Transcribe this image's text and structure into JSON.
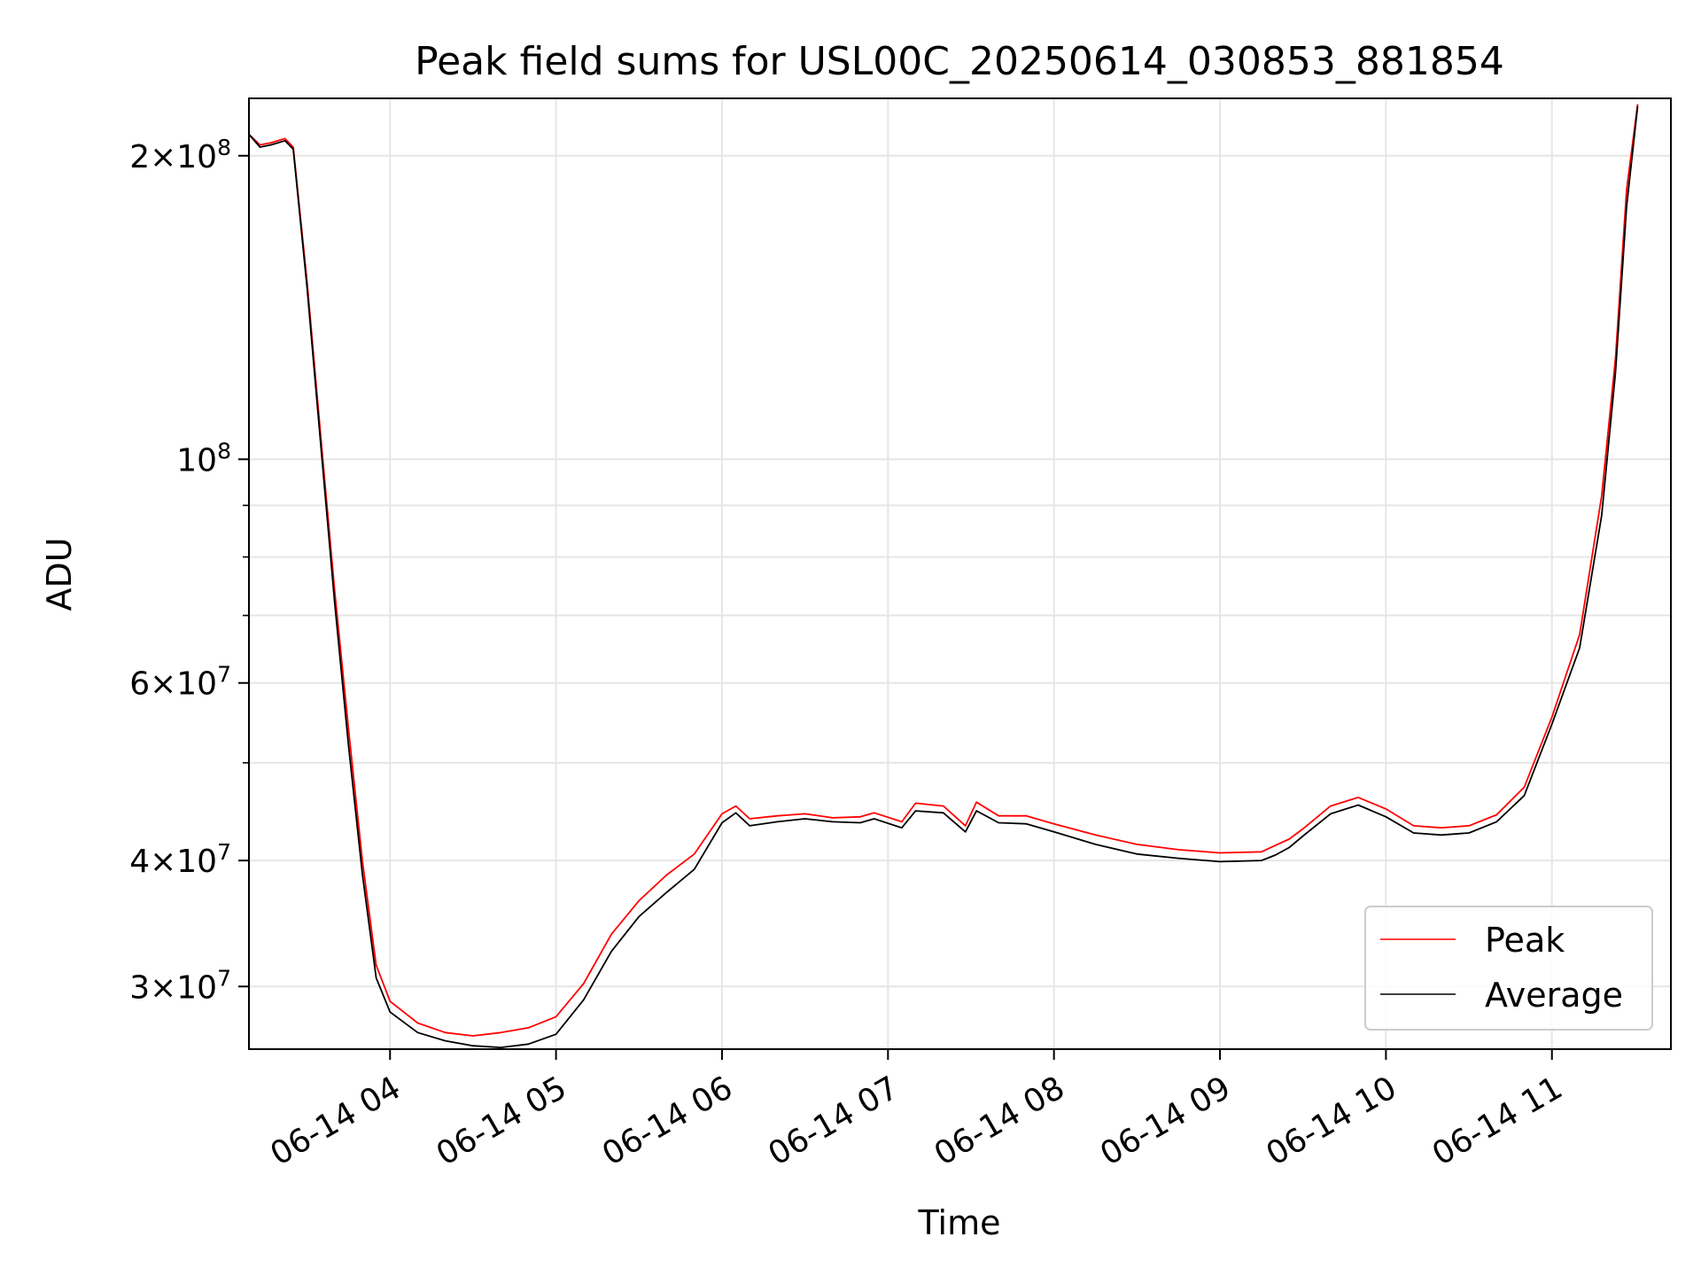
{
  "chart_data": {
    "type": "line",
    "title": "Peak field sums for USL00C_20250614_030853_881854",
    "xlabel": "Time",
    "ylabel": "ADU",
    "yscale": "log",
    "xlim": [
      "2025-06-14 03:09",
      "2025-06-14 11:43"
    ],
    "ylim": [
      26000000,
      228000000
    ],
    "x_ticks": [
      {
        "value": "2025-06-14 04:00",
        "label": "06-14 04"
      },
      {
        "value": "2025-06-14 05:00",
        "label": "06-14 05"
      },
      {
        "value": "2025-06-14 06:00",
        "label": "06-14 06"
      },
      {
        "value": "2025-06-14 07:00",
        "label": "06-14 07"
      },
      {
        "value": "2025-06-14 08:00",
        "label": "06-14 08"
      },
      {
        "value": "2025-06-14 09:00",
        "label": "06-14 09"
      },
      {
        "value": "2025-06-14 10:00",
        "label": "06-14 10"
      },
      {
        "value": "2025-06-14 11:00",
        "label": "06-14 11"
      }
    ],
    "y_ticks": [
      {
        "value": 30000000,
        "mantissa": "3",
        "exp": "7"
      },
      {
        "value": 40000000,
        "mantissa": "4",
        "exp": "7"
      },
      {
        "value": 60000000,
        "mantissa": "6",
        "exp": "7"
      },
      {
        "value": 100000000,
        "mantissa": "",
        "exp": "8"
      },
      {
        "value": 200000000,
        "mantissa": "2",
        "exp": "8"
      }
    ],
    "y_minor_ticks": [
      50000000,
      70000000,
      80000000,
      90000000
    ],
    "grid": true,
    "legend_position": "lower-right",
    "series": [
      {
        "name": "Peak",
        "color": "#ff0000",
        "points": [
          [
            "2025-06-14 03:09",
            210000000
          ],
          [
            "2025-06-14 03:13",
            205000000
          ],
          [
            "2025-06-14 03:17",
            206000000
          ],
          [
            "2025-06-14 03:22",
            208000000
          ],
          [
            "2025-06-14 03:25",
            204000000
          ],
          [
            "2025-06-14 03:30",
            150000000
          ],
          [
            "2025-06-14 03:35",
            105000000
          ],
          [
            "2025-06-14 03:40",
            74000000
          ],
          [
            "2025-06-14 03:45",
            54000000
          ],
          [
            "2025-06-14 03:50",
            40000000
          ],
          [
            "2025-06-14 03:55",
            31500000
          ],
          [
            "2025-06-14 04:00",
            29000000
          ],
          [
            "2025-06-14 04:10",
            27600000
          ],
          [
            "2025-06-14 04:20",
            27000000
          ],
          [
            "2025-06-14 04:30",
            26800000
          ],
          [
            "2025-06-14 04:40",
            27000000
          ],
          [
            "2025-06-14 04:50",
            27300000
          ],
          [
            "2025-06-14 05:00",
            28000000
          ],
          [
            "2025-06-14 05:10",
            30200000
          ],
          [
            "2025-06-14 05:20",
            33800000
          ],
          [
            "2025-06-14 05:30",
            36500000
          ],
          [
            "2025-06-14 05:40",
            38700000
          ],
          [
            "2025-06-14 05:50",
            40600000
          ],
          [
            "2025-06-14 06:00",
            44500000
          ],
          [
            "2025-06-14 06:05",
            45300000
          ],
          [
            "2025-06-14 06:10",
            44000000
          ],
          [
            "2025-06-14 06:20",
            44300000
          ],
          [
            "2025-06-14 06:30",
            44500000
          ],
          [
            "2025-06-14 06:40",
            44100000
          ],
          [
            "2025-06-14 06:50",
            44200000
          ],
          [
            "2025-06-14 06:55",
            44600000
          ],
          [
            "2025-06-14 07:05",
            43700000
          ],
          [
            "2025-06-14 07:10",
            45600000
          ],
          [
            "2025-06-14 07:20",
            45300000
          ],
          [
            "2025-06-14 07:28",
            43300000
          ],
          [
            "2025-06-14 07:32",
            45700000
          ],
          [
            "2025-06-14 07:40",
            44300000
          ],
          [
            "2025-06-14 07:50",
            44300000
          ],
          [
            "2025-06-14 08:00",
            43500000
          ],
          [
            "2025-06-14 08:15",
            42400000
          ],
          [
            "2025-06-14 08:30",
            41500000
          ],
          [
            "2025-06-14 08:45",
            41000000
          ],
          [
            "2025-06-14 09:00",
            40700000
          ],
          [
            "2025-06-14 09:15",
            40800000
          ],
          [
            "2025-06-14 09:20",
            41400000
          ],
          [
            "2025-06-14 09:25",
            42000000
          ],
          [
            "2025-06-14 09:30",
            43000000
          ],
          [
            "2025-06-14 09:40",
            45300000
          ],
          [
            "2025-06-14 09:50",
            46200000
          ],
          [
            "2025-06-14 10:00",
            45000000
          ],
          [
            "2025-06-14 10:10",
            43300000
          ],
          [
            "2025-06-14 10:20",
            43100000
          ],
          [
            "2025-06-14 10:30",
            43300000
          ],
          [
            "2025-06-14 10:40",
            44400000
          ],
          [
            "2025-06-14 10:50",
            47300000
          ],
          [
            "2025-06-14 11:00",
            55500000
          ],
          [
            "2025-06-14 11:10",
            67000000
          ],
          [
            "2025-06-14 11:18",
            92000000
          ],
          [
            "2025-06-14 11:23",
            126000000
          ],
          [
            "2025-06-14 11:27",
            185000000
          ],
          [
            "2025-06-14 11:31",
            225000000
          ]
        ]
      },
      {
        "name": "Average",
        "color": "#000000",
        "points": [
          [
            "2025-06-14 03:09",
            210000000
          ],
          [
            "2025-06-14 03:13",
            204000000
          ],
          [
            "2025-06-14 03:17",
            205000000
          ],
          [
            "2025-06-14 03:22",
            207000000
          ],
          [
            "2025-06-14 03:25",
            203000000
          ],
          [
            "2025-06-14 03:30",
            148000000
          ],
          [
            "2025-06-14 03:35",
            103000000
          ],
          [
            "2025-06-14 03:40",
            72000000
          ],
          [
            "2025-06-14 03:45",
            52000000
          ],
          [
            "2025-06-14 03:50",
            38800000
          ],
          [
            "2025-06-14 03:55",
            30600000
          ],
          [
            "2025-06-14 04:00",
            28300000
          ],
          [
            "2025-06-14 04:10",
            27000000
          ],
          [
            "2025-06-14 04:20",
            26500000
          ],
          [
            "2025-06-14 04:30",
            26200000
          ],
          [
            "2025-06-14 04:40",
            26100000
          ],
          [
            "2025-06-14 04:50",
            26300000
          ],
          [
            "2025-06-14 05:00",
            26900000
          ],
          [
            "2025-06-14 05:10",
            29100000
          ],
          [
            "2025-06-14 05:20",
            32500000
          ],
          [
            "2025-06-14 05:30",
            35200000
          ],
          [
            "2025-06-14 05:40",
            37200000
          ],
          [
            "2025-06-14 05:50",
            39200000
          ],
          [
            "2025-06-14 06:00",
            43600000
          ],
          [
            "2025-06-14 06:05",
            44600000
          ],
          [
            "2025-06-14 06:10",
            43300000
          ],
          [
            "2025-06-14 06:20",
            43700000
          ],
          [
            "2025-06-14 06:30",
            44000000
          ],
          [
            "2025-06-14 06:40",
            43700000
          ],
          [
            "2025-06-14 06:50",
            43600000
          ],
          [
            "2025-06-14 06:55",
            44000000
          ],
          [
            "2025-06-14 07:05",
            43100000
          ],
          [
            "2025-06-14 07:10",
            44800000
          ],
          [
            "2025-06-14 07:20",
            44600000
          ],
          [
            "2025-06-14 07:28",
            42700000
          ],
          [
            "2025-06-14 07:32",
            44800000
          ],
          [
            "2025-06-14 07:40",
            43600000
          ],
          [
            "2025-06-14 07:50",
            43500000
          ],
          [
            "2025-06-14 08:00",
            42700000
          ],
          [
            "2025-06-14 08:15",
            41500000
          ],
          [
            "2025-06-14 08:30",
            40600000
          ],
          [
            "2025-06-14 08:45",
            40200000
          ],
          [
            "2025-06-14 09:00",
            39900000
          ],
          [
            "2025-06-14 09:15",
            40000000
          ],
          [
            "2025-06-14 09:20",
            40500000
          ],
          [
            "2025-06-14 09:25",
            41200000
          ],
          [
            "2025-06-14 09:30",
            42300000
          ],
          [
            "2025-06-14 09:40",
            44500000
          ],
          [
            "2025-06-14 09:50",
            45400000
          ],
          [
            "2025-06-14 10:00",
            44200000
          ],
          [
            "2025-06-14 10:10",
            42600000
          ],
          [
            "2025-06-14 10:20",
            42400000
          ],
          [
            "2025-06-14 10:30",
            42600000
          ],
          [
            "2025-06-14 10:40",
            43700000
          ],
          [
            "2025-06-14 10:50",
            46400000
          ],
          [
            "2025-06-14 11:00",
            54600000
          ],
          [
            "2025-06-14 11:10",
            65000000
          ],
          [
            "2025-06-14 11:18",
            88000000
          ],
          [
            "2025-06-14 11:23",
            122000000
          ],
          [
            "2025-06-14 11:27",
            178000000
          ],
          [
            "2025-06-14 11:31",
            224000000
          ]
        ]
      }
    ]
  }
}
